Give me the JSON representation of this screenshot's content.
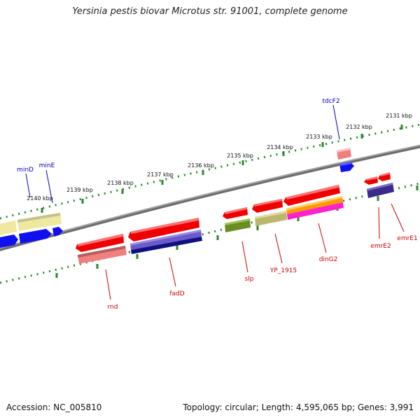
{
  "title": "Yersinia pestis biovar Microtus str. 91001, complete genome",
  "footer": {
    "accession": "Accession: NC_005810",
    "summary": "Topology: circular; Length: 4,595,065 bp; Genes: 3,991"
  },
  "scale_labels": [
    "2131 kbp",
    "2132 kbp",
    "2133 kbp",
    "2134 kbp",
    "2135 kbp",
    "2136 kbp",
    "2137 kbp",
    "2138 kbp",
    "2139 kbp",
    "2140 kbp"
  ],
  "genes_forward": [
    "tdcF2",
    "minE",
    "minD"
  ],
  "genes_reverse": [
    "rnd",
    "fadD",
    "slp",
    "YP_1915",
    "dinG2",
    "emrE2",
    "emrE1"
  ],
  "colors": {
    "backbone": "#808080",
    "tick": "#2a8a2a",
    "label_forward": "#0000bb",
    "label_reverse": "#cc0000",
    "red": "#ee0000",
    "pink": "#f08080",
    "blue": "#1010ee",
    "khaki": "#eee8a0",
    "olive": "#6b8e23",
    "slate": "#6a5acd",
    "navy": "#101080",
    "orange": "#ff9900",
    "magenta": "#ff22cc",
    "darkkhaki": "#bdb76b"
  }
}
